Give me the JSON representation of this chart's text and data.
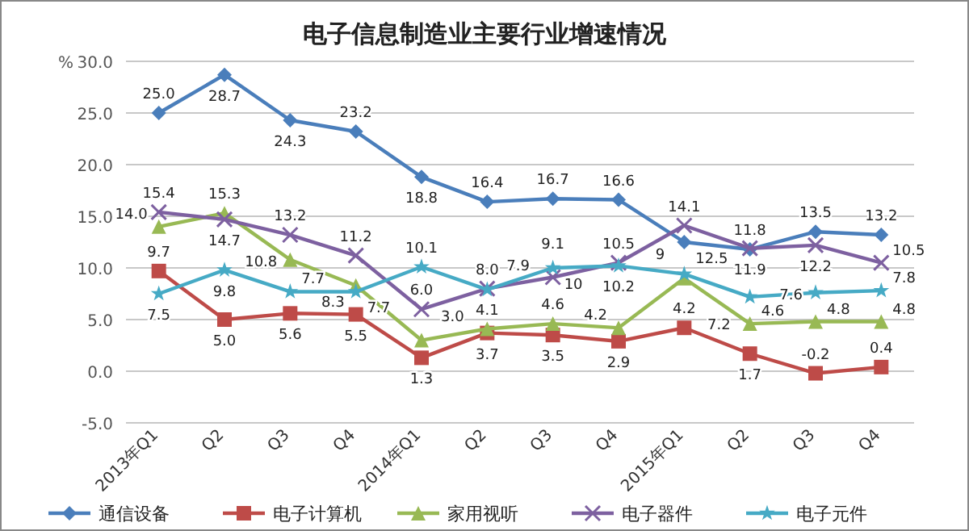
{
  "chart_data": {
    "type": "line",
    "title": "电子信息制造业主要行业增速情况",
    "ylabel": "%",
    "categories": [
      "2013年Q1",
      "Q2",
      "Q3",
      "Q4",
      "2014年Q1",
      "Q2",
      "Q3",
      "Q4",
      "2015年Q1",
      "Q2",
      "Q3",
      "Q4"
    ],
    "ylim": [
      -5,
      30
    ],
    "yticks": [
      {
        "value": -5,
        "label": "-5.0"
      },
      {
        "value": 0,
        "label": "0.0"
      },
      {
        "value": 5,
        "label": "5.0"
      },
      {
        "value": 10,
        "label": "10.0"
      },
      {
        "value": 15,
        "label": "15.0"
      },
      {
        "value": 20,
        "label": "20.0"
      },
      {
        "value": 25,
        "label": "25.0"
      },
      {
        "value": 30,
        "label": "30.0"
      }
    ],
    "grid": "y",
    "legend": "bottom",
    "series": [
      {
        "name": "通信设备",
        "color": "#4a7ebb",
        "marker": "diamond",
        "values": [
          25.0,
          28.7,
          24.3,
          23.2,
          18.8,
          16.4,
          16.7,
          16.6,
          12.5,
          11.8,
          13.5,
          13.2
        ],
        "value_labels": [
          "25.0",
          "28.7",
          "24.3",
          "23.2",
          "18.8",
          "16.4",
          "16.7",
          "16.6",
          "12.5",
          "11.8",
          "13.5",
          "13.2"
        ]
      },
      {
        "name": "电子计算机",
        "color": "#be4b48",
        "marker": "square",
        "values": [
          9.7,
          5.0,
          5.6,
          5.5,
          1.3,
          3.7,
          3.5,
          2.9,
          4.2,
          1.7,
          -0.2,
          0.4
        ],
        "value_labels": [
          "9.7",
          "5.0",
          "5.6",
          "5.5",
          "1.3",
          "3.7",
          "3.5",
          "2.9",
          "4.2",
          "1.7",
          "-0.2",
          "0.4"
        ]
      },
      {
        "name": "家用视听",
        "color": "#98b954",
        "marker": "triangle",
        "values": [
          14.0,
          15.3,
          10.8,
          8.3,
          3.0,
          4.1,
          4.6,
          4.2,
          9,
          4.6,
          4.8,
          4.8
        ],
        "value_labels": [
          "14.0",
          "15.3",
          "10.8",
          "8.3",
          "3.0",
          "4.1",
          "4.6",
          "4.2",
          "9",
          "4.6",
          "4.8",
          "4.8"
        ]
      },
      {
        "name": "电子器件",
        "color": "#7d60a0",
        "marker": "cross",
        "values": [
          15.4,
          14.7,
          13.2,
          11.2,
          6.0,
          8.0,
          9.1,
          10.5,
          14.1,
          11.9,
          12.2,
          10.5
        ],
        "value_labels": [
          "15.4",
          "14.7",
          "13.2",
          "11.2",
          "6.0",
          "8.0",
          "9.1",
          "10.5",
          "14.1",
          "11.9",
          "12.2",
          "10.5"
        ]
      },
      {
        "name": "电子元件",
        "color": "#46aac5",
        "marker": "star",
        "values": [
          7.5,
          9.8,
          7.7,
          7.7,
          10.1,
          7.9,
          10,
          10.2,
          9.4,
          7.2,
          7.6,
          7.8
        ],
        "value_labels": [
          "7.5",
          "9.8",
          "7.7",
          "7.7",
          "10.1",
          "7.9",
          "10",
          "10.2",
          null,
          "7.2",
          "7.6",
          "7.8"
        ]
      }
    ]
  }
}
